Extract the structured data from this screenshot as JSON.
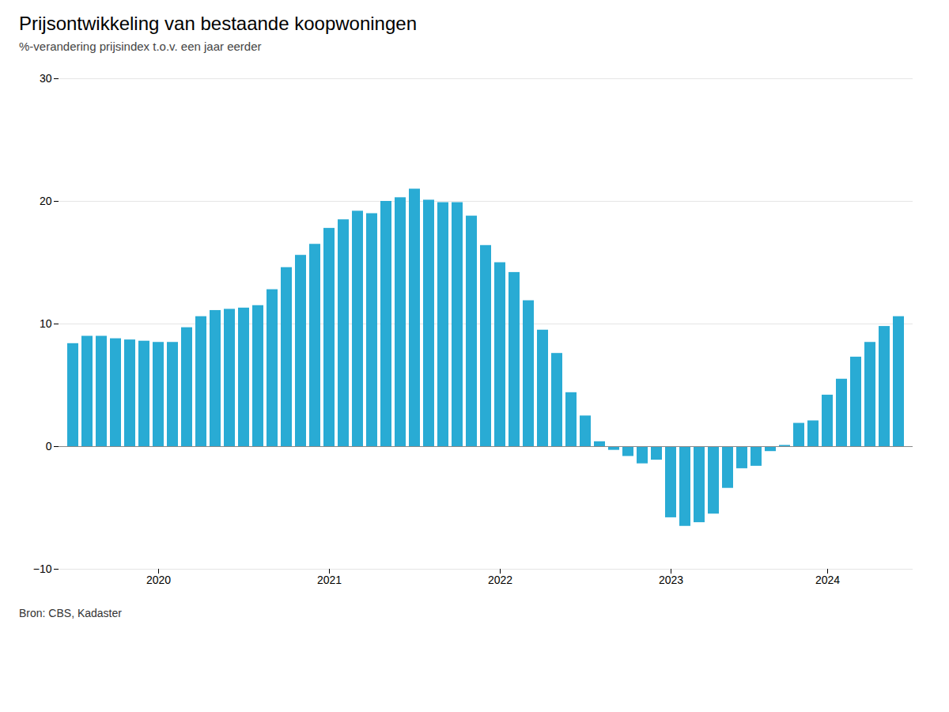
{
  "chart_data": {
    "type": "bar",
    "title": "Prijsontwikkeling van bestaande koopwoningen",
    "subtitle": "%-verandering prijsindex t.o.v. een jaar eerder",
    "source": "Bron: CBS, Kadaster",
    "categories": [
      null,
      null,
      null,
      null,
      null,
      null,
      "2020",
      null,
      null,
      null,
      null,
      null,
      null,
      null,
      null,
      null,
      null,
      null,
      "2021",
      null,
      null,
      null,
      null,
      null,
      null,
      null,
      null,
      null,
      null,
      null,
      "2022",
      null,
      null,
      null,
      null,
      null,
      null,
      null,
      null,
      null,
      null,
      null,
      "2023",
      null,
      null,
      null,
      null,
      null,
      null,
      null,
      null,
      null,
      null,
      "2024",
      null,
      null,
      null,
      null,
      null
    ],
    "values": [
      8.4,
      9.0,
      9.0,
      8.8,
      8.7,
      8.6,
      8.5,
      8.5,
      9.7,
      10.6,
      11.1,
      11.2,
      11.3,
      11.5,
      12.8,
      14.6,
      15.6,
      16.5,
      17.8,
      18.5,
      19.2,
      19.0,
      20.0,
      20.3,
      21.0,
      20.1,
      19.9,
      19.9,
      18.8,
      16.4,
      15.0,
      14.2,
      11.9,
      9.5,
      7.6,
      4.4,
      2.5,
      0.4,
      -0.3,
      -0.8,
      -1.4,
      -1.1,
      -5.8,
      -6.5,
      -6.2,
      -5.5,
      -3.4,
      -1.8,
      -1.6,
      -0.4,
      0.1,
      1.9,
      2.1,
      4.2,
      5.5,
      7.3,
      8.5,
      9.8,
      10.6
    ],
    "color": "#29ABD4",
    "ylim": [
      -10,
      30
    ],
    "yticks": [
      -10,
      0,
      10,
      20,
      30
    ],
    "grid": true
  }
}
